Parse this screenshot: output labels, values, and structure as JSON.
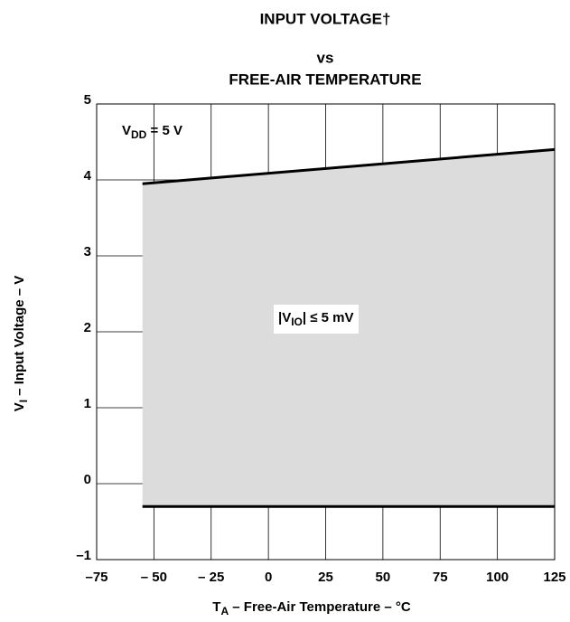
{
  "chart_data": {
    "type": "area",
    "title": [
      "INPUT VOLTAGE†",
      "vs",
      "FREE-AIR TEMPERATURE"
    ],
    "x_label": [
      "T",
      "A",
      " – Free-Air Temperature – °C"
    ],
    "y_label": [
      "V",
      "I",
      " – Input Voltage – V"
    ],
    "annotations": [
      {
        "parts": [
          "V",
          "DD",
          " = 5 V"
        ]
      },
      {
        "parts": [
          "|V",
          "IO",
          "| ≤ 5 mV"
        ]
      }
    ],
    "x": [
      -55,
      125
    ],
    "upper": [
      3.95,
      4.4
    ],
    "lower": [
      -0.3,
      -0.3
    ],
    "fill_color": "#dcdcdc",
    "line_color": "#000000",
    "xlim": [
      -75,
      125
    ],
    "xticks": [
      {
        "value": -75,
        "label": "–75"
      },
      {
        "value": -50,
        "label": "– 50"
      },
      {
        "value": -25,
        "label": "– 25"
      },
      0,
      25,
      50,
      75,
      100,
      125
    ],
    "ylim": [
      -1,
      5
    ],
    "yticks": [
      {
        "value": -1,
        "label": "–1"
      },
      0,
      1,
      2,
      3,
      4,
      5
    ],
    "grid": true
  }
}
